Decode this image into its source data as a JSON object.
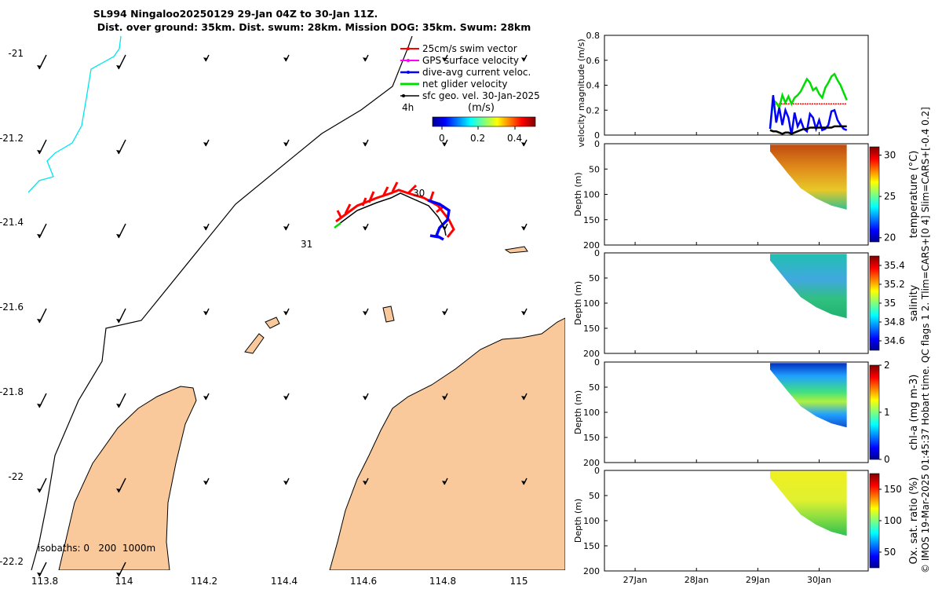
{
  "title_line1": "SL994 Ningaloo20250129 29-Jan 04Z to 30-Jan 11Z.",
  "title_line2": "Dist. over ground: 35km. Dist. swum: 28km. Mission DOG: 35km. Swum: 28km",
  "footer": "© IMOS 19-Mar-2025 01:45:37 Hobart time. QC flags 1  2. Tlim=CARS+[0 4] Slim=CARS+[-0.4 0.2]",
  "colors": {
    "land": "#f9c99b",
    "coast_outline": "#000000",
    "isobath_cyan": "#00e5ee",
    "swim_vector": "#ff0000",
    "gps_velocity": "#ff00ff",
    "dive_avg": "#0000ff",
    "net_glider": "#00dd00",
    "geo_vel": "#000000"
  },
  "map": {
    "x_ticks": [
      "113.8",
      "114",
      "114.2",
      "114.4",
      "114.6",
      "114.8",
      "115"
    ],
    "y_ticks": [
      "-21",
      "-21.2",
      "-21.4",
      "-21.6",
      "-21.8",
      "-22",
      "-22.2"
    ],
    "legend": [
      "25cm/s swim vector",
      "GPS surface velocity",
      "dive-avg current veloc.",
      "net glider velocity",
      "sfc geo. vel. 30-Jan-2025"
    ],
    "colorbar_label": "(m/s)",
    "colorbar_ticks": [
      "0",
      "0.2",
      "0.4"
    ],
    "isobaths_label": "isobaths: 0   200  1000m",
    "day_labels": [
      "30",
      "31"
    ],
    "time_label": "4h"
  },
  "chart_data": [
    {
      "type": "line",
      "title": "velocity magnitude",
      "ylabel": "velocity magnitude (m/s)",
      "ylim": [
        0,
        0.8
      ],
      "y_ticks": [
        "0",
        "0.2",
        "0.4",
        "0.6",
        "0.8"
      ],
      "x": [
        29.2,
        29.25,
        29.3,
        29.35,
        29.4,
        29.45,
        29.5,
        29.55,
        29.6,
        29.65,
        29.7,
        29.75,
        29.8,
        29.85,
        29.9,
        29.95,
        30.0,
        30.05,
        30.1,
        30.15,
        30.2,
        30.25,
        30.3,
        30.35,
        30.4,
        30.45
      ],
      "series": [
        {
          "name": "swim vector",
          "color": "#ff0000",
          "values": [
            0.08,
            0.24,
            0.25,
            0.25,
            0.25,
            0.25,
            0.25,
            0.25,
            0.25,
            0.25,
            0.25,
            0.25,
            0.25,
            0.25,
            0.25,
            0.25,
            0.25,
            0.25,
            0.25,
            0.25,
            0.25,
            0.25,
            0.25,
            0.25,
            0.25,
            0.25
          ]
        },
        {
          "name": "net glider velocity",
          "color": "#00dd00",
          "values": [
            0.05,
            0.28,
            0.26,
            0.22,
            0.32,
            0.26,
            0.31,
            0.25,
            0.3,
            0.32,
            0.35,
            0.4,
            0.45,
            0.42,
            0.36,
            0.38,
            0.33,
            0.3,
            0.38,
            0.42,
            0.47,
            0.49,
            0.44,
            0.4,
            0.34,
            0.28
          ]
        },
        {
          "name": "dive-avg current",
          "color": "#0000ff",
          "values": [
            0.05,
            0.32,
            0.1,
            0.22,
            0.08,
            0.2,
            0.14,
            0.0,
            0.18,
            0.07,
            0.12,
            0.05,
            0.03,
            0.17,
            0.14,
            0.05,
            0.12,
            0.04,
            0.05,
            0.08,
            0.19,
            0.2,
            0.12,
            0.08,
            0.05,
            0.04
          ]
        },
        {
          "name": "sfc geo. vel.",
          "color": "#000000",
          "values": [
            0.04,
            0.03,
            0.03,
            0.02,
            0.01,
            0.02,
            0.02,
            0.01,
            0.02,
            0.03,
            0.04,
            0.05,
            0.05,
            0.06,
            0.06,
            0.06,
            0.06,
            0.06,
            0.06,
            0.06,
            0.06,
            0.07,
            0.07,
            0.07,
            0.07,
            0.07
          ]
        }
      ]
    },
    {
      "type": "heatmap",
      "ylabel": "Depth (m)",
      "cbar_label": "temperature (°C)",
      "ylim": [
        0,
        200
      ],
      "y_ticks": [
        "0",
        "50",
        "100",
        "150",
        "200"
      ],
      "cbar_ticks": [
        "20",
        "25",
        "30"
      ],
      "cbar_range": [
        19.5,
        31
      ]
    },
    {
      "type": "heatmap",
      "ylabel": "Depth (m)",
      "cbar_label": "salinity",
      "ylim": [
        0,
        200
      ],
      "y_ticks": [
        "0",
        "50",
        "100",
        "150",
        "200"
      ],
      "cbar_ticks": [
        "34.6",
        "34.8",
        "35",
        "35.2",
        "35.4"
      ],
      "cbar_range": [
        34.5,
        35.5
      ]
    },
    {
      "type": "heatmap",
      "ylabel": "Depth (m)",
      "cbar_label": "chl-a (mg m-3)",
      "ylim": [
        0,
        200
      ],
      "y_ticks": [
        "0",
        "50",
        "100",
        "150",
        "200"
      ],
      "cbar_ticks": [
        "0",
        "1",
        "2"
      ],
      "cbar_range": [
        0,
        2
      ]
    },
    {
      "type": "heatmap",
      "ylabel": "Depth (m)",
      "cbar_label": "Ox. sat. ratio (%)",
      "ylim": [
        0,
        200
      ],
      "y_ticks": [
        "0",
        "50",
        "100",
        "150",
        "200"
      ],
      "cbar_ticks": [
        "50",
        "100",
        "150"
      ],
      "cbar_range": [
        25,
        175
      ]
    }
  ],
  "time_axis": {
    "ticks": [
      "27Jan",
      "28Jan",
      "29Jan",
      "30Jan"
    ],
    "range": [
      26.5,
      30.8
    ]
  }
}
